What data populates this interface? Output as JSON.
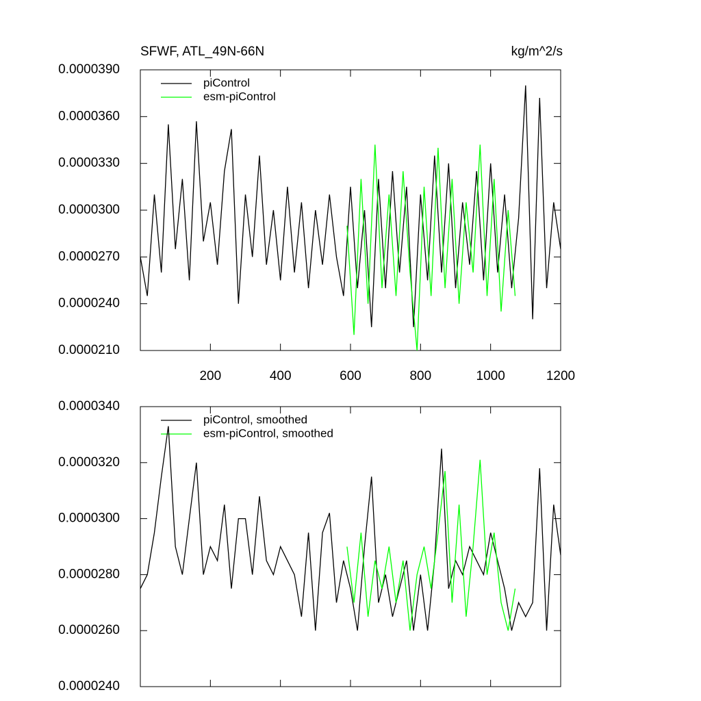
{
  "chart_data": [
    {
      "type": "line",
      "title": "SFWF, ATL_49N-66N",
      "units": "kg/m^2/s",
      "xlim": [
        0,
        1200
      ],
      "xticks": [
        200,
        400,
        600,
        800,
        1000,
        1200
      ],
      "ylim": [
        2.1e-05,
        3.9e-05
      ],
      "yticks": [
        {
          "value": 2.1e-05,
          "label": "0.0000210"
        },
        {
          "value": 2.4e-05,
          "label": "0.0000240"
        },
        {
          "value": 2.7e-05,
          "label": "0.0000270"
        },
        {
          "value": 3e-05,
          "label": "0.0000300"
        },
        {
          "value": 3.3e-05,
          "label": "0.0000330"
        },
        {
          "value": 3.6e-05,
          "label": "0.0000360"
        },
        {
          "value": 3.9e-05,
          "label": "0.0000390"
        }
      ],
      "series": [
        {
          "name": "piControl",
          "color": "#000000",
          "x": [
            0,
            20,
            40,
            60,
            80,
            100,
            120,
            140,
            160,
            180,
            200,
            220,
            240,
            260,
            280,
            300,
            320,
            340,
            360,
            380,
            400,
            420,
            440,
            460,
            480,
            500,
            520,
            540,
            560,
            580,
            600,
            620,
            640,
            660,
            680,
            700,
            720,
            740,
            760,
            780,
            800,
            820,
            840,
            860,
            880,
            900,
            920,
            940,
            960,
            980,
            1000,
            1020,
            1040,
            1060,
            1080,
            1100,
            1120,
            1140,
            1160,
            1180,
            1200
          ],
          "values": [
            2.7e-05,
            2.45e-05,
            3.1e-05,
            2.6e-05,
            3.55e-05,
            2.75e-05,
            3.2e-05,
            2.55e-05,
            3.57e-05,
            2.8e-05,
            3.05e-05,
            2.65e-05,
            3.25e-05,
            3.52e-05,
            2.4e-05,
            3.1e-05,
            2.7e-05,
            3.35e-05,
            2.65e-05,
            3e-05,
            2.55e-05,
            3.15e-05,
            2.6e-05,
            3.05e-05,
            2.5e-05,
            3e-05,
            2.65e-05,
            3.1e-05,
            2.7e-05,
            2.45e-05,
            3.15e-05,
            2.5e-05,
            3e-05,
            2.25e-05,
            3.2e-05,
            2.5e-05,
            3.25e-05,
            2.6e-05,
            3.15e-05,
            2.25e-05,
            3.1e-05,
            2.55e-05,
            3.35e-05,
            2.6e-05,
            3.3e-05,
            2.5e-05,
            3.05e-05,
            2.65e-05,
            3.25e-05,
            2.55e-05,
            3.3e-05,
            2.6e-05,
            3.1e-05,
            2.5e-05,
            2.95e-05,
            3.8e-05,
            2.3e-05,
            3.72e-05,
            2.5e-05,
            3.05e-05,
            2.75e-05
          ]
        },
        {
          "name": "esm-piControl",
          "color": "#00ff00",
          "x": [
            590,
            610,
            630,
            650,
            670,
            690,
            710,
            730,
            750,
            770,
            790,
            810,
            830,
            850,
            870,
            890,
            910,
            930,
            950,
            970,
            990,
            1010,
            1030,
            1050,
            1070
          ],
          "values": [
            2.9e-05,
            2.2e-05,
            3.2e-05,
            2.4e-05,
            3.42e-05,
            2.5e-05,
            3.1e-05,
            2.45e-05,
            3.25e-05,
            2.6e-05,
            2.1e-05,
            3.15e-05,
            2.45e-05,
            3.4e-05,
            2.5e-05,
            3.2e-05,
            2.4e-05,
            3.05e-05,
            2.6e-05,
            3.42e-05,
            2.45e-05,
            3.2e-05,
            2.35e-05,
            3e-05,
            2.45e-05
          ]
        }
      ]
    },
    {
      "type": "line",
      "xlim": [
        0,
        1200
      ],
      "xticks": [
        200,
        400,
        600,
        800,
        1000,
        1200
      ],
      "ylim": [
        2.4e-05,
        3.4e-05
      ],
      "yticks": [
        {
          "value": 2.4e-05,
          "label": "0.0000240"
        },
        {
          "value": 2.6e-05,
          "label": "0.0000260"
        },
        {
          "value": 2.8e-05,
          "label": "0.0000280"
        },
        {
          "value": 3e-05,
          "label": "0.0000300"
        },
        {
          "value": 3.2e-05,
          "label": "0.0000320"
        },
        {
          "value": 3.4e-05,
          "label": "0.0000340"
        }
      ],
      "series": [
        {
          "name": "piControl, smoothed",
          "color": "#000000",
          "x": [
            0,
            20,
            40,
            60,
            80,
            100,
            120,
            140,
            160,
            180,
            200,
            220,
            240,
            260,
            280,
            300,
            320,
            340,
            360,
            380,
            400,
            420,
            440,
            460,
            480,
            500,
            520,
            540,
            560,
            580,
            600,
            620,
            640,
            660,
            680,
            700,
            720,
            740,
            760,
            780,
            800,
            820,
            840,
            860,
            880,
            900,
            920,
            940,
            960,
            980,
            1000,
            1020,
            1040,
            1060,
            1080,
            1100,
            1120,
            1140,
            1160,
            1180,
            1200
          ],
          "values": [
            2.75e-05,
            2.8e-05,
            2.95e-05,
            3.15e-05,
            3.33e-05,
            2.9e-05,
            2.8e-05,
            3e-05,
            3.2e-05,
            2.8e-05,
            2.9e-05,
            2.85e-05,
            3.05e-05,
            2.75e-05,
            3e-05,
            3e-05,
            2.8e-05,
            3.08e-05,
            2.85e-05,
            2.8e-05,
            2.9e-05,
            2.85e-05,
            2.8e-05,
            2.65e-05,
            2.95e-05,
            2.6e-05,
            2.95e-05,
            3.02e-05,
            2.7e-05,
            2.85e-05,
            2.75e-05,
            2.6e-05,
            2.9e-05,
            3.15e-05,
            2.7e-05,
            2.8e-05,
            2.65e-05,
            2.75e-05,
            2.85e-05,
            2.6e-05,
            2.8e-05,
            2.6e-05,
            2.85e-05,
            3.25e-05,
            2.75e-05,
            2.85e-05,
            2.8e-05,
            2.9e-05,
            2.85e-05,
            2.8e-05,
            2.95e-05,
            2.85e-05,
            2.75e-05,
            2.6e-05,
            2.7e-05,
            2.65e-05,
            2.7e-05,
            3.18e-05,
            2.6e-05,
            3.05e-05,
            2.87e-05
          ]
        },
        {
          "name": "esm-piControl, smoothed",
          "color": "#00ff00",
          "x": [
            590,
            610,
            630,
            650,
            670,
            690,
            710,
            730,
            750,
            770,
            790,
            810,
            830,
            850,
            870,
            890,
            910,
            930,
            950,
            970,
            990,
            1010,
            1030,
            1050,
            1070
          ],
          "values": [
            2.9e-05,
            2.7e-05,
            2.95e-05,
            2.65e-05,
            2.85e-05,
            2.75e-05,
            2.9e-05,
            2.7e-05,
            2.85e-05,
            2.6e-05,
            2.8e-05,
            2.9e-05,
            2.75e-05,
            2.95e-05,
            3.17e-05,
            2.7e-05,
            3.05e-05,
            2.65e-05,
            2.9e-05,
            3.21e-05,
            2.8e-05,
            2.95e-05,
            2.7e-05,
            2.6e-05,
            2.75e-05
          ]
        }
      ]
    }
  ]
}
